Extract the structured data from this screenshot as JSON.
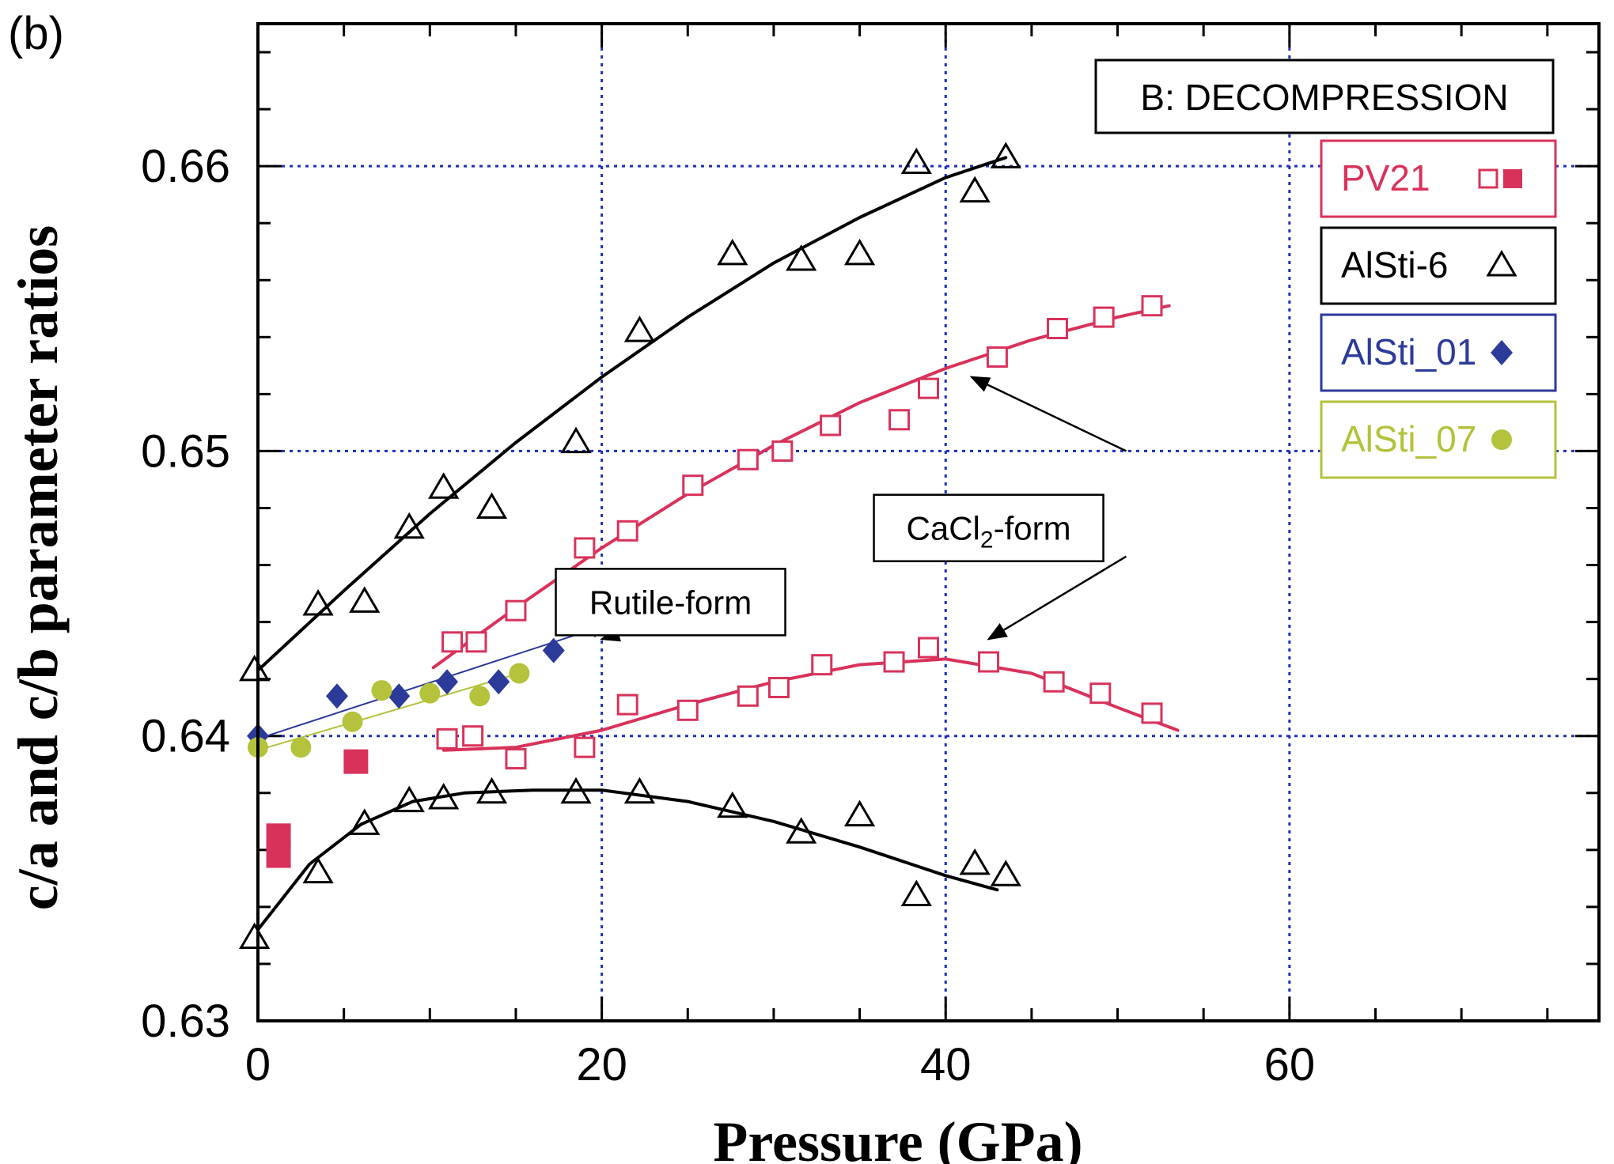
{
  "panel_label": "(b)",
  "colors": {
    "pv21": "#d8325a",
    "alsti6": "#000000",
    "alsti01": "#2c3a9a",
    "alsti07": "#b4c23c",
    "grid": "#1f2fb8"
  },
  "chart_data": {
    "type": "scatter",
    "title": "B: DECOMPRESSION",
    "xlabel": "Pressure (GPa)",
    "ylabel": "c/a and c/b parameter ratios",
    "xlim": [
      0,
      78
    ],
    "ylim": [
      0.63,
      0.665
    ],
    "x_ticks": [
      0,
      20,
      40,
      60
    ],
    "x_tick_labels": [
      "0",
      "20",
      "40",
      "60"
    ],
    "y_ticks": [
      0.63,
      0.64,
      0.65,
      0.66
    ],
    "y_tick_labels": [
      "0.63",
      "0.64",
      "0.65",
      "0.66"
    ],
    "grid": "dotted, at labeled ticks",
    "legend": [
      {
        "label": "PV21",
        "series": "PV21",
        "marker": "square-open-filled"
      },
      {
        "label": "AlSti-6",
        "series": "AlSti-6",
        "marker": "triangle-open"
      },
      {
        "label": "AlSti_01",
        "series": "AlSti_01",
        "marker": "diamond"
      },
      {
        "label": "AlSti_07",
        "series": "AlSti_07",
        "marker": "circle"
      }
    ],
    "series": [
      {
        "name": "PV21",
        "marker": "square-open",
        "color": "pv21",
        "points": [
          [
            11.3,
            0.6433
          ],
          [
            12.7,
            0.6433
          ],
          [
            15,
            0.6444
          ],
          [
            19,
            0.6466
          ],
          [
            21.5,
            0.6472
          ],
          [
            25.3,
            0.6488
          ],
          [
            28.5,
            0.6497
          ],
          [
            30.5,
            0.65
          ],
          [
            33.3,
            0.6509
          ],
          [
            37.3,
            0.6511
          ],
          [
            39,
            0.6522
          ],
          [
            43,
            0.6533
          ],
          [
            46.5,
            0.6543
          ],
          [
            49.2,
            0.6547
          ],
          [
            52,
            0.6551
          ],
          [
            11,
            0.6399
          ],
          [
            12.5,
            0.64
          ],
          [
            15,
            0.6392
          ],
          [
            19,
            0.6396
          ],
          [
            21.5,
            0.6411
          ],
          [
            25,
            0.6409
          ],
          [
            28.5,
            0.6414
          ],
          [
            30.3,
            0.6417
          ],
          [
            32.8,
            0.6425
          ],
          [
            37,
            0.6426
          ],
          [
            39,
            0.6431
          ],
          [
            42.5,
            0.6426
          ],
          [
            46.3,
            0.6419
          ],
          [
            49,
            0.6415
          ],
          [
            52,
            0.6408
          ]
        ]
      },
      {
        "name": "PV21",
        "marker": "square-filled",
        "color": "pv21",
        "points": [
          [
            1.2,
            0.6365
          ],
          [
            1.2,
            0.6358
          ],
          [
            5.7,
            0.6391
          ]
        ]
      },
      {
        "name": "AlSti-6",
        "marker": "triangle-open",
        "color": "alsti6",
        "points": [
          [
            -0.2,
            0.6423
          ],
          [
            3.5,
            0.6446
          ],
          [
            6.2,
            0.6447
          ],
          [
            8.8,
            0.6473
          ],
          [
            10.8,
            0.6487
          ],
          [
            13.6,
            0.648
          ],
          [
            18.5,
            0.6503
          ],
          [
            22.2,
            0.6542
          ],
          [
            27.6,
            0.6569
          ],
          [
            31.6,
            0.6567
          ],
          [
            35,
            0.6569
          ],
          [
            38.3,
            0.6601
          ],
          [
            41.7,
            0.6591
          ],
          [
            43.5,
            0.6603
          ],
          [
            -0.2,
            0.6329
          ],
          [
            3.5,
            0.6352
          ],
          [
            6.2,
            0.6369
          ],
          [
            8.8,
            0.6377
          ],
          [
            10.8,
            0.6378
          ],
          [
            13.6,
            0.638
          ],
          [
            18.5,
            0.638
          ],
          [
            22.2,
            0.638
          ],
          [
            27.6,
            0.6375
          ],
          [
            31.6,
            0.6366
          ],
          [
            35,
            0.6372
          ],
          [
            38.3,
            0.6344
          ],
          [
            41.7,
            0.6355
          ],
          [
            43.5,
            0.6351
          ]
        ]
      },
      {
        "name": "AlSti_01",
        "marker": "diamond",
        "color": "alsti01",
        "points": [
          [
            0,
            0.64
          ],
          [
            4.6,
            0.6414
          ],
          [
            8.2,
            0.6414
          ],
          [
            11,
            0.6419
          ],
          [
            14,
            0.6419
          ],
          [
            17.2,
            0.643
          ],
          [
            19.6,
            0.6439
          ],
          [
            21.8,
            0.6443
          ]
        ]
      },
      {
        "name": "AlSti_07",
        "marker": "circle",
        "color": "alsti07",
        "points": [
          [
            0,
            0.6396
          ],
          [
            2.5,
            0.6396
          ],
          [
            5.5,
            0.6405
          ],
          [
            7.2,
            0.6416
          ],
          [
            10,
            0.6415
          ],
          [
            12.9,
            0.6414
          ],
          [
            15.2,
            0.6422
          ]
        ]
      }
    ],
    "fits": [
      {
        "color": "alsti6",
        "width": 4,
        "points": [
          [
            0,
            0.6423
          ],
          [
            5,
            0.6451
          ],
          [
            10,
            0.6478
          ],
          [
            15,
            0.6503
          ],
          [
            20,
            0.6526
          ],
          [
            25,
            0.6547
          ],
          [
            30,
            0.6566
          ],
          [
            35,
            0.6582
          ],
          [
            40,
            0.6596
          ],
          [
            43.5,
            0.6603
          ]
        ]
      },
      {
        "color": "alsti6",
        "width": 4,
        "points": [
          [
            0,
            0.6332
          ],
          [
            3,
            0.6355
          ],
          [
            6,
            0.6369
          ],
          [
            9,
            0.6377
          ],
          [
            12,
            0.638
          ],
          [
            16,
            0.6381
          ],
          [
            20,
            0.6381
          ],
          [
            25,
            0.6377
          ],
          [
            30,
            0.637
          ],
          [
            35,
            0.6361
          ],
          [
            40,
            0.6351
          ],
          [
            43,
            0.6346
          ]
        ]
      },
      {
        "color": "pv21",
        "width": 4,
        "points": [
          [
            10.2,
            0.6424
          ],
          [
            15,
            0.6445
          ],
          [
            20,
            0.6466
          ],
          [
            25,
            0.6485
          ],
          [
            30,
            0.6502
          ],
          [
            35,
            0.6517
          ],
          [
            40,
            0.6529
          ],
          [
            45,
            0.6539
          ],
          [
            50,
            0.6547
          ],
          [
            53,
            0.6551
          ]
        ]
      },
      {
        "color": "pv21",
        "width": 4,
        "points": [
          [
            10.8,
            0.6395
          ],
          [
            15,
            0.6396
          ],
          [
            20,
            0.6402
          ],
          [
            25,
            0.6411
          ],
          [
            30,
            0.6419
          ],
          [
            35,
            0.6425
          ],
          [
            40,
            0.6427
          ],
          [
            45,
            0.6422
          ],
          [
            50,
            0.641
          ],
          [
            53.5,
            0.6402
          ]
        ]
      },
      {
        "color": "alsti01",
        "width": 2,
        "points": [
          [
            0,
            0.6399
          ],
          [
            21.8,
            0.6442
          ]
        ]
      },
      {
        "color": "alsti07",
        "width": 2,
        "points": [
          [
            0,
            0.6395
          ],
          [
            15.2,
            0.6422
          ]
        ]
      }
    ],
    "annotations": [
      {
        "text": "CaCl2-form",
        "base": "CaCl",
        "sub": "2",
        "rest": "-form",
        "x": 42.5,
        "y": 0.6473
      },
      {
        "text": "Rutile-form",
        "x": 24,
        "y": 0.6447
      }
    ],
    "arrows": [
      {
        "from": [
          50.5,
          0.65
        ],
        "to": [
          41.5,
          0.6526
        ]
      },
      {
        "from": [
          50.5,
          0.6463
        ],
        "to": [
          42.5,
          0.6434
        ]
      },
      {
        "from": [
          26,
          0.6445
        ],
        "to": [
          20,
          0.6434
        ]
      }
    ]
  }
}
